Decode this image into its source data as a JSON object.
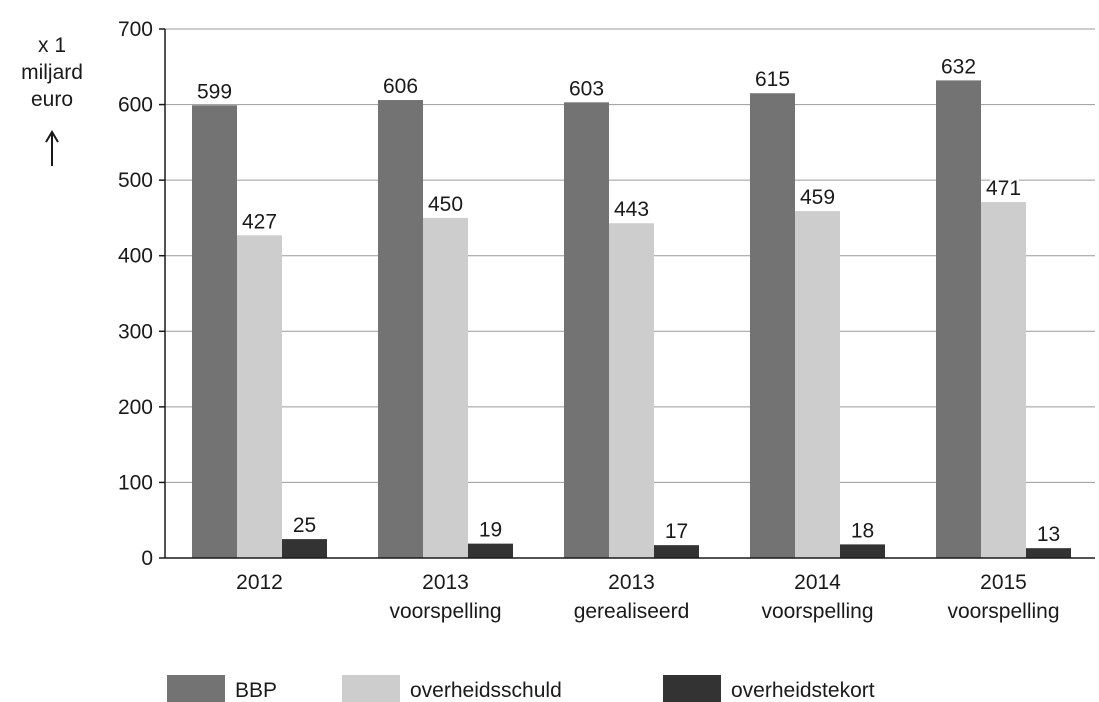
{
  "chart_data": {
    "type": "bar",
    "ylabel": [
      "x 1",
      "miljard",
      "euro"
    ],
    "ylim": [
      0,
      700
    ],
    "yticks": [
      0,
      100,
      200,
      300,
      400,
      500,
      600,
      700
    ],
    "grid": true,
    "legend_position": "bottom",
    "categories": [
      [
        "2012"
      ],
      [
        "2013",
        "voorspelling"
      ],
      [
        "2013",
        "gerealiseerd"
      ],
      [
        "2014",
        "voorspelling"
      ],
      [
        "2015",
        "voorspelling"
      ]
    ],
    "series": [
      {
        "name": "BBP",
        "color": "#737373",
        "values": [
          599,
          606,
          603,
          615,
          632
        ]
      },
      {
        "name": "overheidsschuld",
        "color": "#cdcdcd",
        "values": [
          427,
          450,
          443,
          459,
          471
        ]
      },
      {
        "name": "overheidstekort",
        "color": "#333333",
        "values": [
          25,
          19,
          17,
          18,
          13
        ]
      }
    ]
  }
}
